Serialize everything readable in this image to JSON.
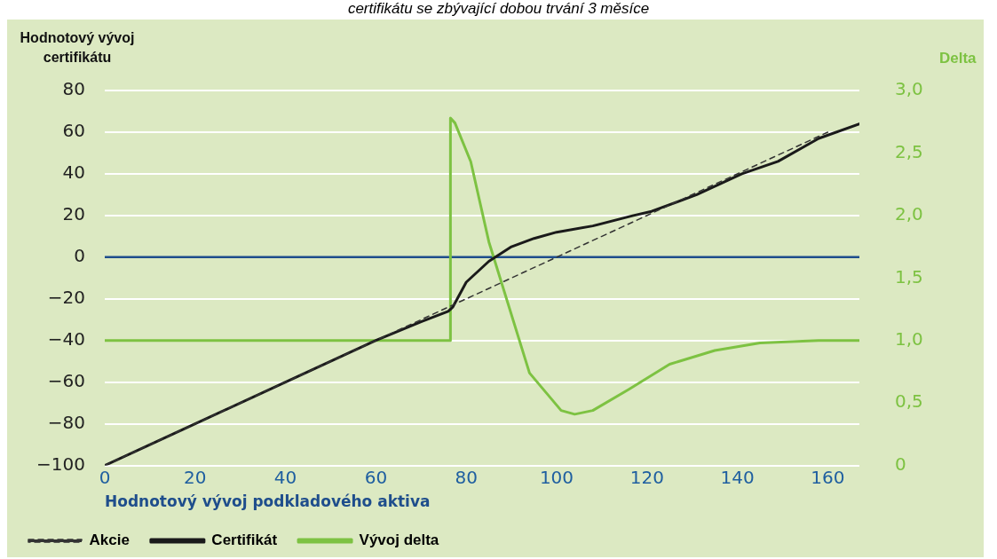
{
  "chart_data": {
    "type": "line",
    "title": "certifikátu se zbývající dobou trvání 3 měsíce",
    "xlabel": "Hodnotový vývoj podkladového aktiva",
    "ylabel": "Hodnotový vývoj certifikátu",
    "y2label": "Delta",
    "xlim": [
      0,
      167
    ],
    "xticks": [
      0,
      20,
      40,
      60,
      80,
      100,
      120,
      140,
      160
    ],
    "ylim": [
      -100,
      80
    ],
    "yticks": [
      {
        "value": -100,
        "label": "−100"
      },
      {
        "value": -80,
        "label": "−80"
      },
      {
        "value": -60,
        "label": "−60"
      },
      {
        "value": -40,
        "label": "−40"
      },
      {
        "value": -20,
        "label": "−20"
      },
      0,
      20,
      40,
      60,
      80
    ],
    "y2lim": [
      0,
      3
    ],
    "y2ticks": [
      0,
      {
        "value": 0.5,
        "label": "0,5"
      },
      {
        "value": 1,
        "label": "1,0"
      },
      {
        "value": 1.5,
        "label": "1,5"
      },
      {
        "value": 2,
        "label": "2,0"
      },
      {
        "value": 2.5,
        "label": "2,5"
      },
      {
        "value": 3,
        "label": "3,0"
      }
    ],
    "grid": "y",
    "legend": "bottom",
    "marker": "none",
    "ref_lines": [
      {
        "axis": "y",
        "value": 0,
        "color": "#1f4e8c"
      }
    ],
    "series": [
      {
        "name": "Akcie",
        "color": "#333333",
        "line_style": "dashed",
        "x": [
          0,
          160
        ],
        "values": [
          -100,
          60
        ]
      },
      {
        "name": "Certifikát",
        "color": "#1a1a1a",
        "line_style": "solid",
        "x": [
          0,
          20,
          40,
          60,
          70,
          76,
          77,
          80,
          85,
          90,
          95,
          100,
          108,
          117,
          121,
          131,
          141,
          149,
          158,
          167
        ],
        "values": [
          -100,
          -80,
          -60,
          -40,
          -31,
          -26,
          -24,
          -12,
          -2,
          5,
          9,
          12,
          15,
          20,
          22,
          30,
          40,
          46,
          57,
          64
        ]
      },
      {
        "name": "Vývoj delta",
        "color": "#7dc242",
        "line_style": "solid",
        "axis": "y2",
        "x": [
          0,
          76.5,
          76.5,
          77.5,
          81,
          85,
          94,
          101,
          104,
          108,
          116,
          125,
          135,
          145,
          158,
          167
        ],
        "values": [
          1,
          1,
          2.78,
          2.74,
          2.43,
          1.79,
          0.74,
          0.44,
          0.41,
          0.44,
          0.61,
          0.81,
          0.92,
          0.98,
          1,
          1
        ]
      }
    ]
  }
}
